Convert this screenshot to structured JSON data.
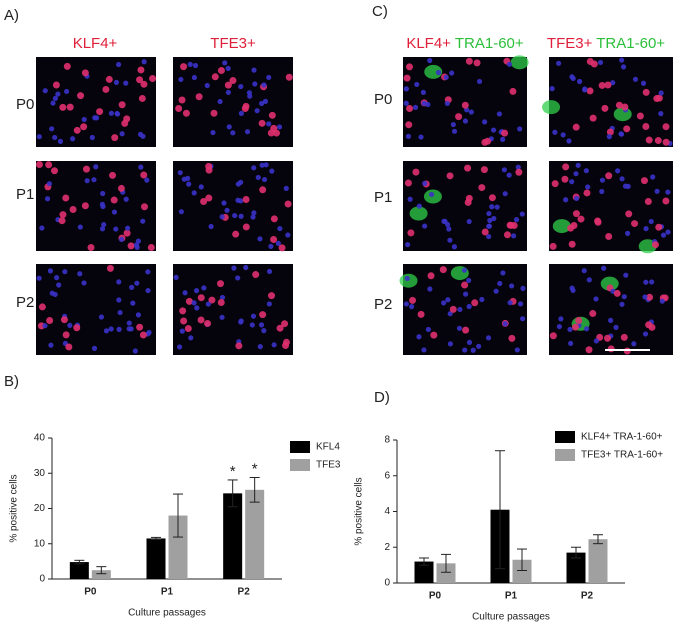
{
  "panels": {
    "A": {
      "label": "A)",
      "columns": [
        "KLF4+",
        "TFE3+"
      ],
      "rows": [
        "P0",
        "P1",
        "P2"
      ]
    },
    "C": {
      "label": "C)",
      "columns": [
        [
          "KLF4+",
          "TRA1-60+"
        ],
        [
          "TFE3+",
          "TRA1-60+"
        ]
      ],
      "rows": [
        "P0",
        "P1",
        "P2"
      ]
    },
    "B": {
      "label": "B)"
    },
    "D": {
      "label": "D)"
    }
  },
  "chart_data": [
    {
      "type": "bar",
      "xlabel": "Culture passages",
      "ylabel": "% positive cells",
      "categories": [
        "P0",
        "P1",
        "P2"
      ],
      "series": [
        {
          "name": "KFL4",
          "color": "#000000",
          "values": [
            4.8,
            11.5,
            24.3
          ],
          "errors": [
            0.5,
            0.3,
            3.8
          ]
        },
        {
          "name": "TFE3",
          "color": "#a0a0a0",
          "values": [
            2.5,
            18,
            25.3
          ],
          "errors": [
            1,
            6.1,
            3.5
          ]
        }
      ],
      "annotations": [
        {
          "text": "*",
          "category": "P2",
          "series": "KFL4"
        },
        {
          "text": "*",
          "category": "P2",
          "series": "TFE3"
        }
      ],
      "ylim": [
        0,
        40
      ],
      "yticks": [
        0,
        10,
        20,
        30,
        40
      ],
      "legend": "upper right"
    },
    {
      "type": "bar",
      "xlabel": "Culture passages",
      "ylabel": "% positive cells",
      "categories": [
        "P0",
        "P1",
        "P2"
      ],
      "series": [
        {
          "name": "KLF4+ TRA-1-60+",
          "color": "#000000",
          "values": [
            1.2,
            4.1,
            1.7
          ],
          "errors": [
            0.2,
            3.3,
            0.3
          ]
        },
        {
          "name": "TFE3+ TRA-1-60+",
          "color": "#a0a0a0",
          "values": [
            1.1,
            1.3,
            2.45
          ],
          "errors": [
            0.5,
            0.6,
            0.25
          ]
        }
      ],
      "ylim": [
        0,
        8
      ],
      "yticks": [
        0,
        2,
        4,
        6,
        8
      ],
      "legend": "upper right"
    }
  ]
}
